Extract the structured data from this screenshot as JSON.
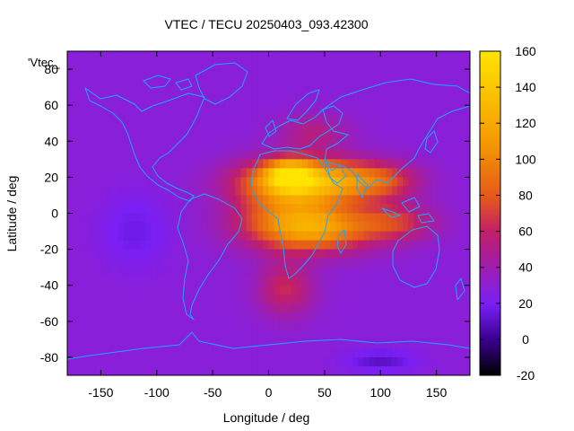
{
  "chart_data": {
    "type": "heatmap",
    "title": "VTEC / TECU 20250403_093.42300",
    "xlabel": "Longitude / deg",
    "ylabel": "Latitude / deg",
    "series_label": "'Vtec_",
    "xlim": [
      -180,
      180
    ],
    "ylim": [
      -90,
      90
    ],
    "x_ticks": [
      -150,
      -100,
      -50,
      0,
      50,
      100,
      150
    ],
    "y_ticks": [
      -80,
      -60,
      -40,
      -20,
      0,
      20,
      40,
      60,
      80
    ],
    "colorbar": {
      "range": [
        -20,
        160
      ],
      "ticks": [
        -20,
        0,
        20,
        40,
        60,
        80,
        100,
        120,
        140,
        160
      ],
      "palette": [
        "#000000",
        "#3a0090",
        "#7a1ff6",
        "#c01e6a",
        "#e4581a",
        "#f59a00",
        "#ffe400"
      ]
    },
    "grid": false,
    "background_value": 28,
    "features": [
      {
        "name": "equatorial crest north",
        "lon": 35,
        "lat": 18,
        "lon_width": 55,
        "lat_width": 12,
        "peak": 100
      },
      {
        "name": "equatorial crest south",
        "lon": 40,
        "lat": -8,
        "lon_width": 55,
        "lat_width": 13,
        "peak": 85
      },
      {
        "name": "crest north maximum (Sahara)",
        "lon": 18,
        "lat": 22,
        "lon_width": 20,
        "lat_width": 8,
        "peak": 60
      },
      {
        "name": "north crest eastward extension",
        "lon": 100,
        "lat": 18,
        "lon_width": 35,
        "lat_width": 10,
        "peak": 40
      },
      {
        "name": "south crest eastward extension",
        "lon": 115,
        "lat": -5,
        "lon_width": 35,
        "lat_width": 10,
        "peak": 35
      },
      {
        "name": "equatorial trough fill",
        "lon": 10,
        "lat": 5,
        "lon_width": 45,
        "lat_width": 18,
        "peak": 30
      },
      {
        "name": "south Atlantic tongue",
        "lon": 15,
        "lat": -42,
        "lon_width": 25,
        "lat_width": 15,
        "peak": 35
      },
      {
        "name": "northern mid-latitude",
        "lon": 40,
        "lat": 45,
        "lon_width": 30,
        "lat_width": 10,
        "peak": 25
      },
      {
        "name": "eastern Pacific depletion",
        "lon": -120,
        "lat": -10,
        "lon_width": 30,
        "lat_width": 20,
        "peak": -12
      },
      {
        "name": "Antarctic depletion",
        "lon": 100,
        "lat": -82,
        "lon_width": 30,
        "lat_width": 6,
        "peak": -18
      }
    ]
  }
}
